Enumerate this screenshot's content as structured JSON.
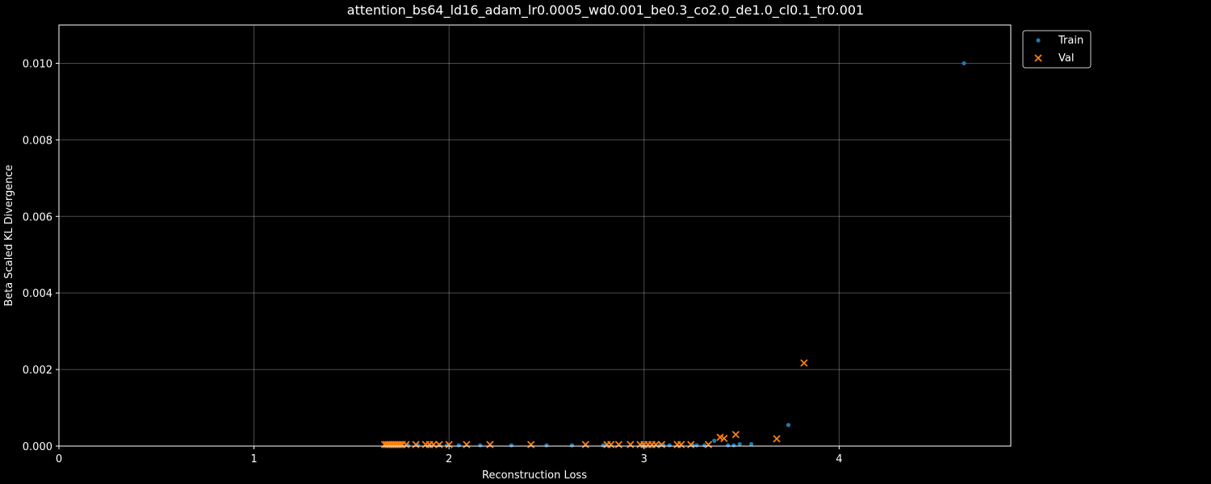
{
  "chart_data": {
    "type": "scatter",
    "title": "attention_bs64_ld16_adam_lr0.0005_wd0.001_be0.3_co2.0_de1.0_cl0.1_tr0.001",
    "xlabel": "Reconstruction Loss",
    "ylabel": "Beta Scaled KL Divergence",
    "xlim": [
      0,
      4.88
    ],
    "ylim": [
      0,
      0.011
    ],
    "xticks": [
      0,
      1,
      2,
      3,
      4
    ],
    "xtick_labels": [
      "0",
      "1",
      "2",
      "3",
      "4"
    ],
    "yticks": [
      0,
      0.002,
      0.004,
      0.006,
      0.008,
      0.01
    ],
    "ytick_labels": [
      "0.000",
      "0.002",
      "0.004",
      "0.006",
      "0.008",
      "0.010"
    ],
    "grid": true,
    "legend_placement": "outside-top-right",
    "series": [
      {
        "name": "Train",
        "marker": "circle",
        "color": "#1f77b4",
        "points": [
          [
            4.64,
            0.01
          ],
          [
            3.74,
            0.00055
          ],
          [
            3.55,
            5e-05
          ],
          [
            3.49,
            5e-05
          ],
          [
            3.46,
            2e-05
          ],
          [
            3.43,
            2e-05
          ],
          [
            3.36,
            0.00014
          ],
          [
            3.31,
            2e-05
          ],
          [
            3.27,
            2e-05
          ],
          [
            3.25,
            2e-05
          ],
          [
            3.13,
            2e-05
          ],
          [
            3.1,
            2e-05
          ],
          [
            3.08,
            2e-05
          ],
          [
            2.99,
            2e-05
          ],
          [
            2.8,
            2e-05
          ],
          [
            2.79,
            2e-05
          ],
          [
            2.63,
            2e-05
          ],
          [
            2.5,
            2e-05
          ],
          [
            2.32,
            2e-05
          ],
          [
            2.16,
            2e-05
          ],
          [
            2.05,
            2e-05
          ],
          [
            1.99,
            2e-05
          ],
          [
            1.95,
            2e-05
          ],
          [
            1.9,
            2e-05
          ],
          [
            1.84,
            2e-05
          ],
          [
            1.79,
            2e-05
          ],
          [
            1.74,
            2e-05
          ],
          [
            1.7,
            2e-05
          ]
        ]
      },
      {
        "name": "Val",
        "marker": "x",
        "color": "#ff7f0e",
        "points": [
          [
            3.82,
            0.00217
          ],
          [
            3.68,
            0.00019
          ],
          [
            3.47,
            0.0003
          ],
          [
            3.41,
            0.0002
          ],
          [
            3.39,
            0.00023
          ],
          [
            3.33,
            4e-05
          ],
          [
            3.24,
            4e-05
          ],
          [
            3.19,
            4e-05
          ],
          [
            3.17,
            4e-05
          ],
          [
            3.09,
            4e-05
          ],
          [
            3.06,
            4e-05
          ],
          [
            3.04,
            4e-05
          ],
          [
            3.02,
            4e-05
          ],
          [
            3.0,
            4e-05
          ],
          [
            2.98,
            4e-05
          ],
          [
            2.93,
            4e-05
          ],
          [
            2.87,
            4e-05
          ],
          [
            2.83,
            4e-05
          ],
          [
            2.81,
            4e-05
          ],
          [
            2.7,
            4e-05
          ],
          [
            2.42,
            4e-05
          ],
          [
            2.21,
            4e-05
          ],
          [
            2.09,
            4e-05
          ],
          [
            2.0,
            4e-05
          ],
          [
            1.95,
            4e-05
          ],
          [
            1.92,
            4e-05
          ],
          [
            1.9,
            4e-05
          ],
          [
            1.88,
            4e-05
          ],
          [
            1.83,
            4e-05
          ],
          [
            1.78,
            4e-05
          ],
          [
            1.76,
            4e-05
          ],
          [
            1.75,
            4e-05
          ],
          [
            1.74,
            4e-05
          ],
          [
            1.73,
            4e-05
          ],
          [
            1.72,
            4e-05
          ],
          [
            1.71,
            4e-05
          ],
          [
            1.7,
            4e-05
          ],
          [
            1.69,
            4e-05
          ],
          [
            1.68,
            4e-05
          ],
          [
            1.67,
            4e-05
          ]
        ]
      }
    ]
  }
}
